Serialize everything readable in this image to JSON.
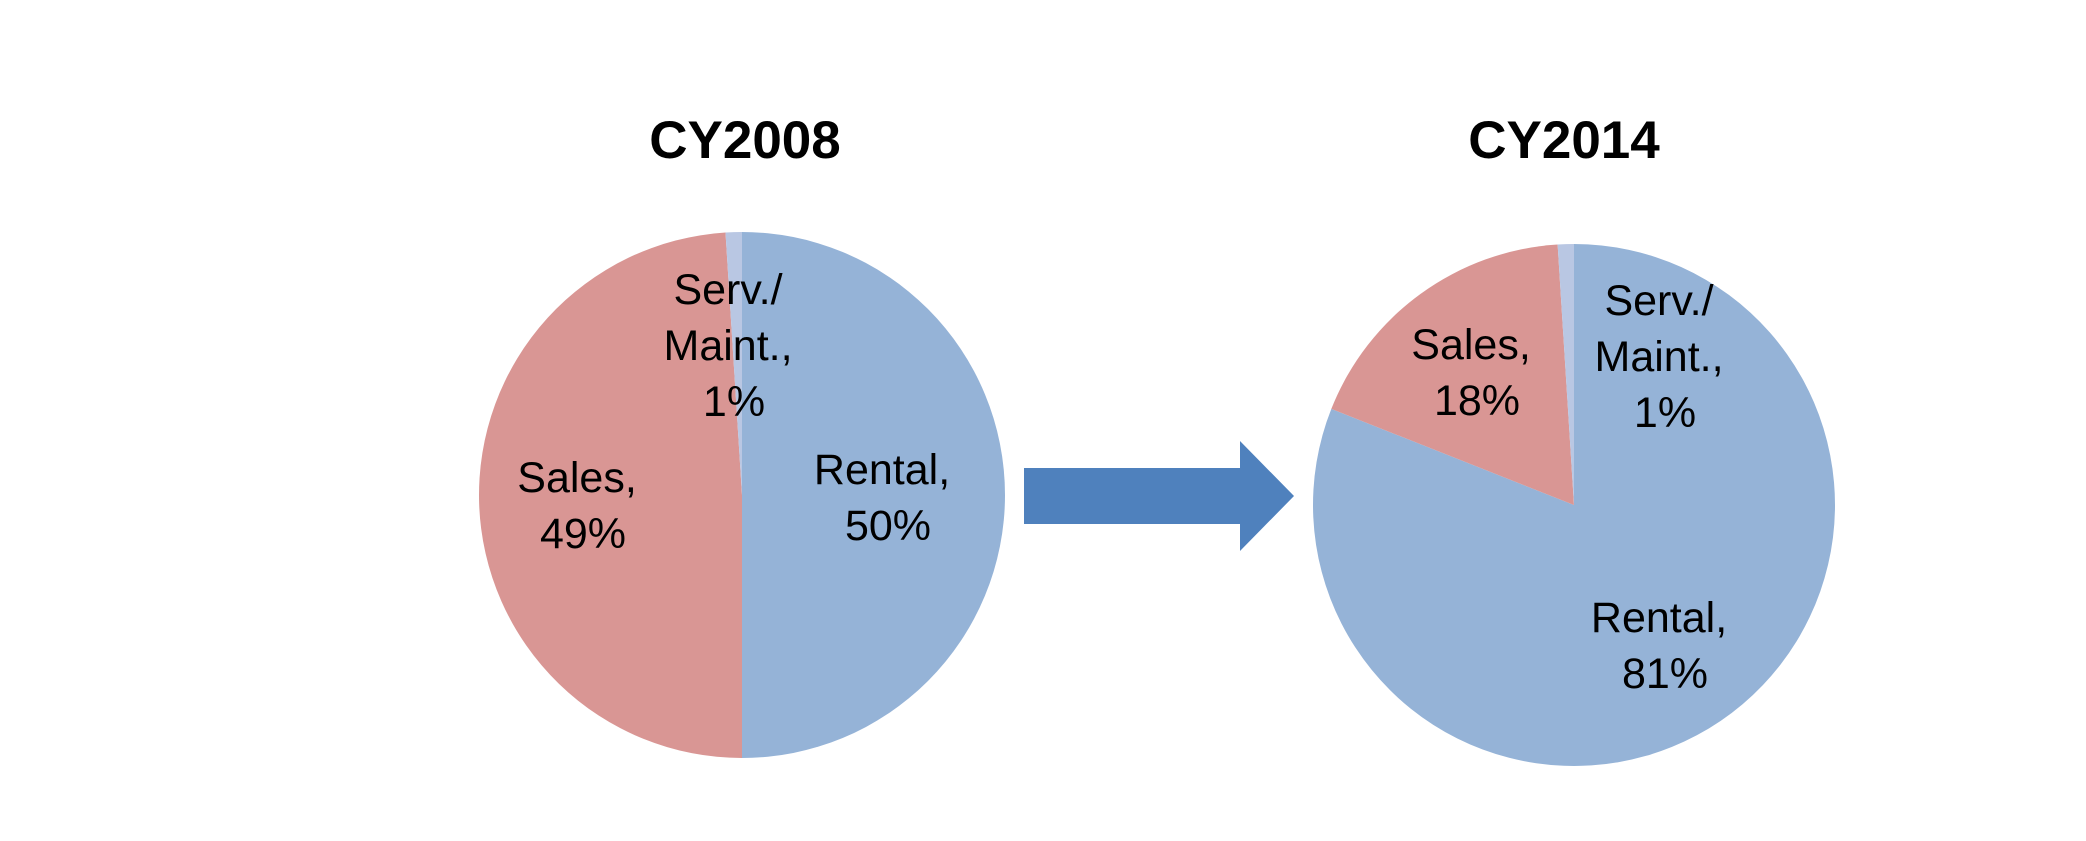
{
  "chart_data": [
    {
      "type": "pie",
      "title": "CY2008",
      "values": [
        50,
        49,
        1
      ],
      "value_labels": [
        "Rental, 50%",
        "Sales, 49%",
        "Serv./ Maint., 1%"
      ],
      "colors": [
        "#95b3d7",
        "#d99694",
        "#b9c7e3"
      ]
    },
    {
      "type": "pie",
      "title": "CY2014",
      "values": [
        81,
        18,
        1
      ],
      "value_labels": [
        "Rental, 81%",
        "Sales, 18%",
        "Serv./ Maint., 1%"
      ],
      "colors": [
        "#95b3d7",
        "#d99694",
        "#b9c7e3"
      ]
    }
  ]
}
